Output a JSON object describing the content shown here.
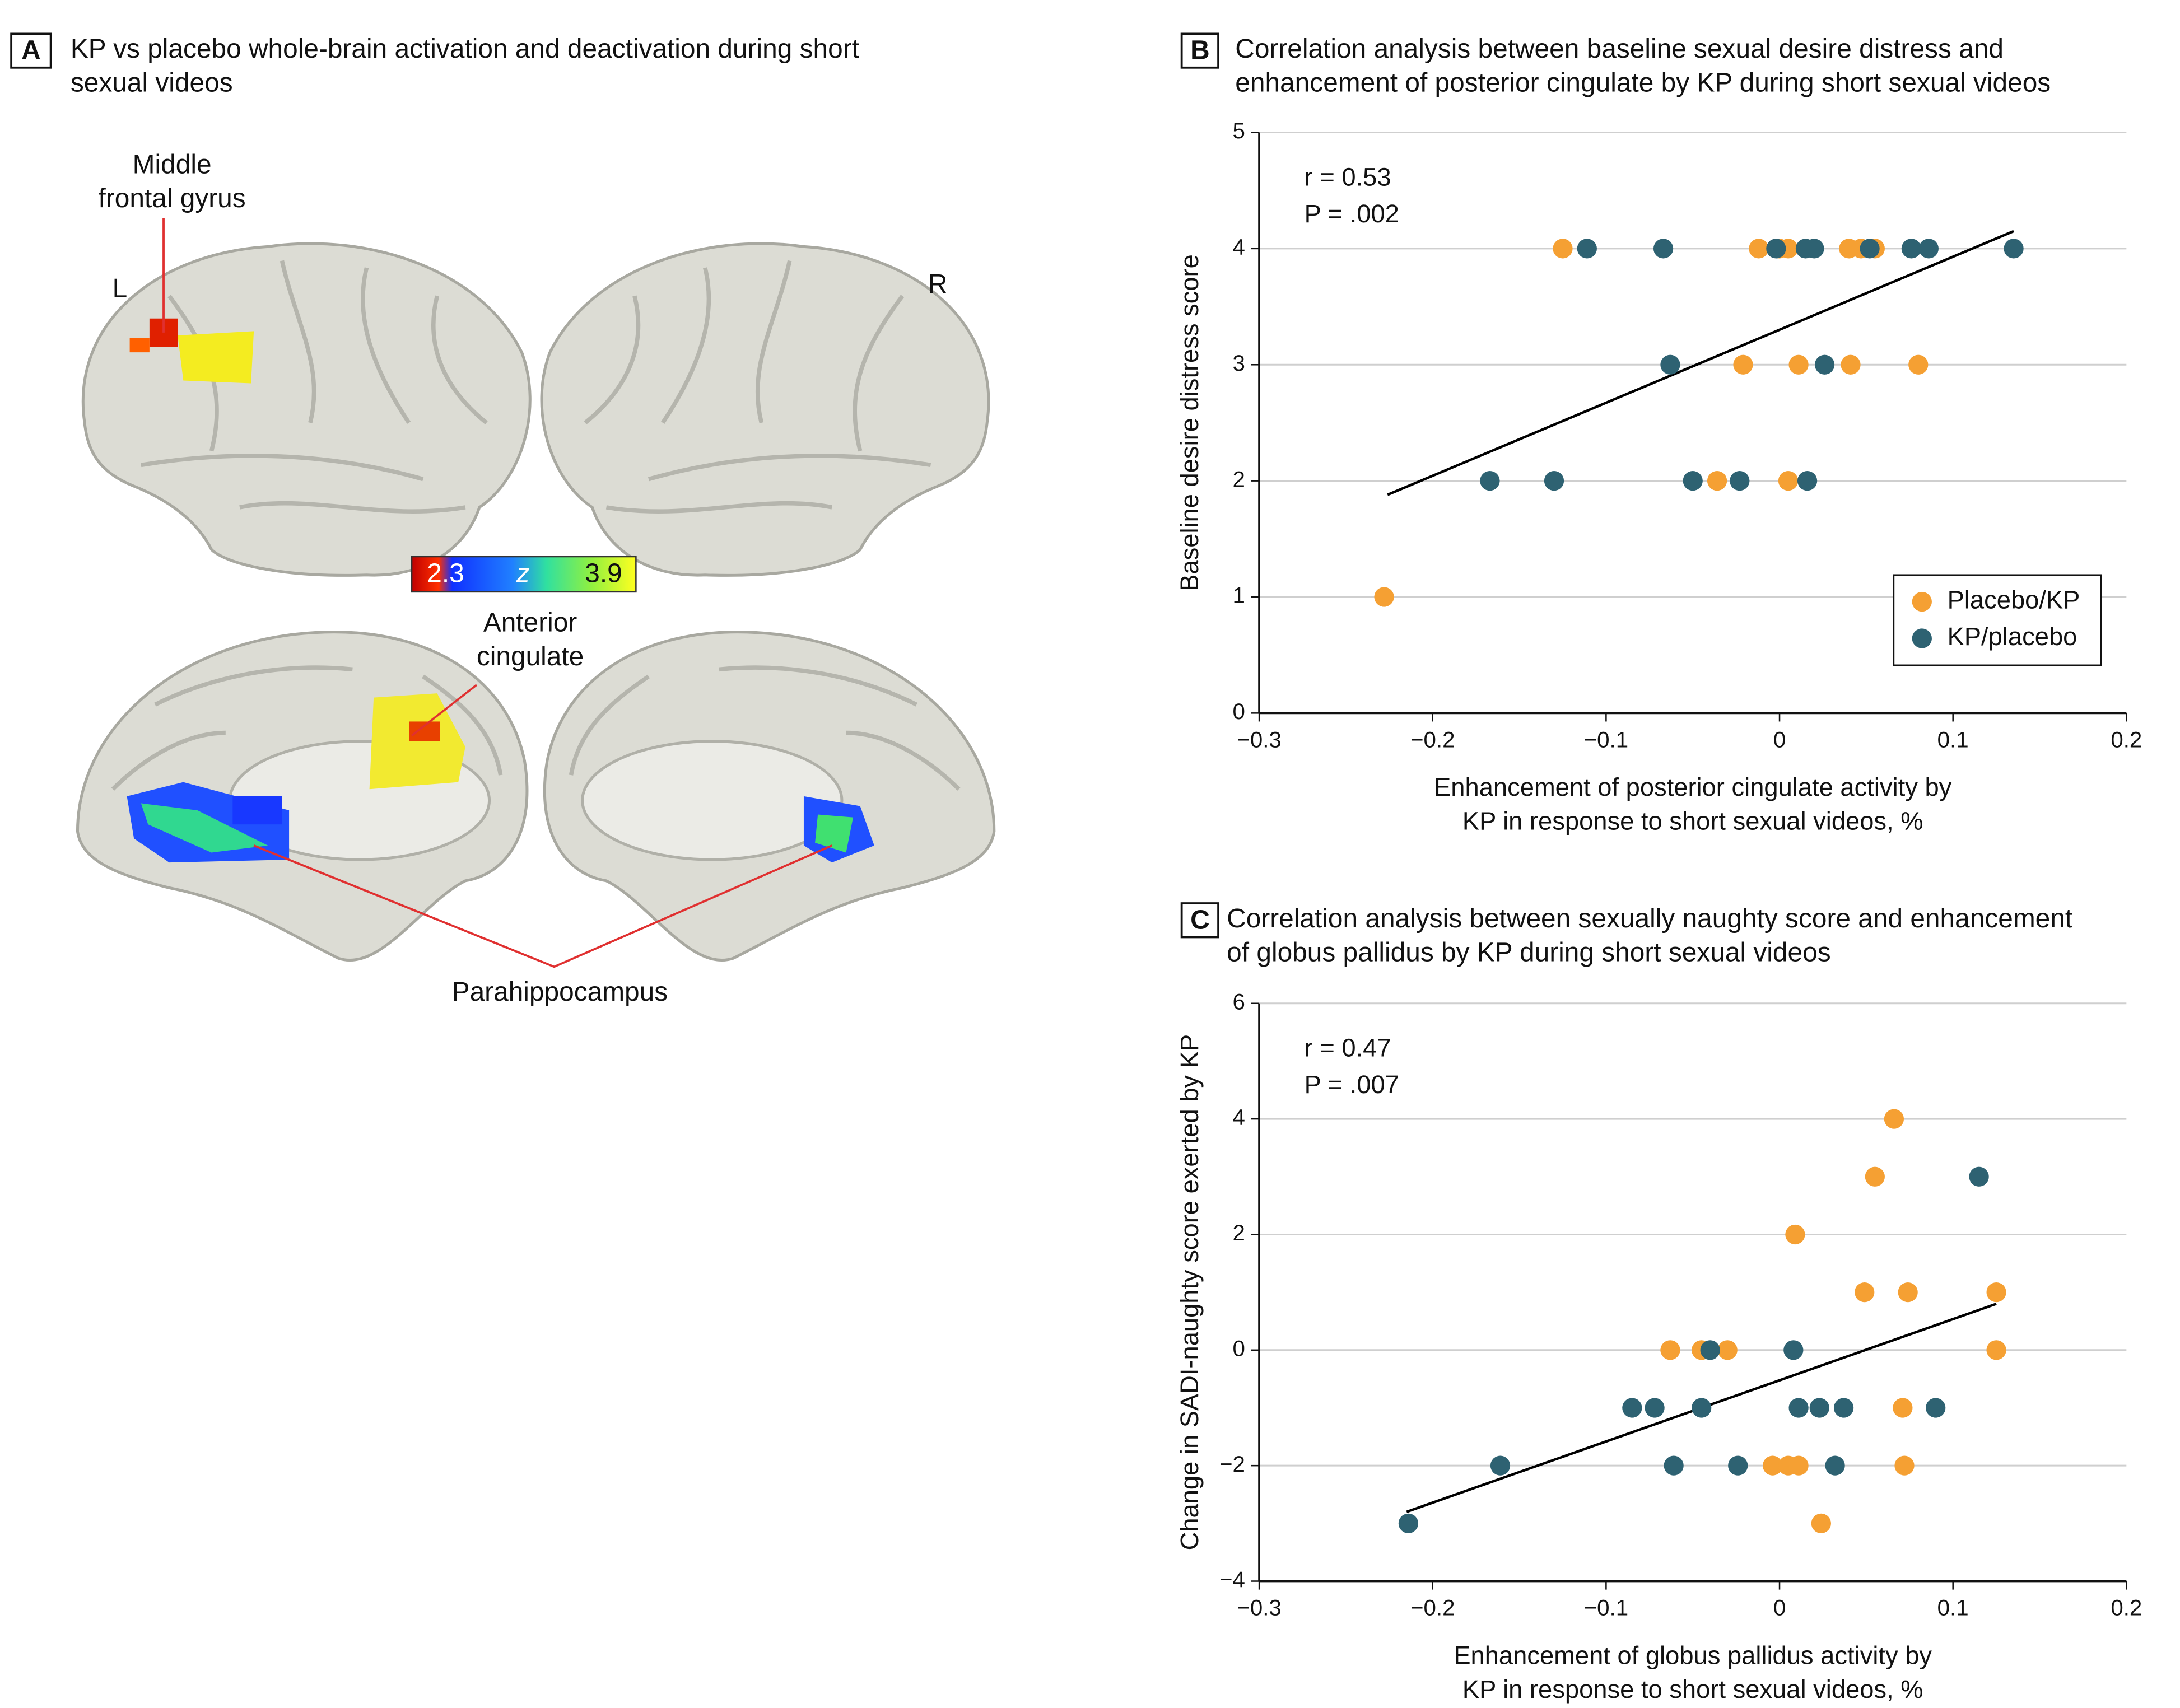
{
  "panel_a": {
    "label": "A",
    "title_lines": [
      "KP vs placebo whole-brain activation and deactivation during short",
      "sexual videos"
    ],
    "labels": {
      "middle_frontal_gyrus": [
        "Middle",
        "frontal gyrus"
      ],
      "left": "L",
      "right": "R",
      "anterior_cingulate": [
        "Anterior",
        "cingulate"
      ],
      "parahippocampus": "Parahippocampus"
    },
    "colorbar": {
      "min": 2.3,
      "label": "z",
      "max": 3.9
    }
  },
  "chart_data": [
    {
      "type": "scatter",
      "panel": "B",
      "title_lines": [
        "Correlation analysis between baseline sexual desire distress and",
        "enhancement of posterior cingulate by KP during short sexual videos"
      ],
      "x_label_lines": [
        "Enhancement of posterior cingulate activity by",
        "KP in response to short sexual videos, %"
      ],
      "y_label": "Baseline desire distress score",
      "annotations": [
        "r = 0.53",
        "P = .002"
      ],
      "xlim": [
        -0.3,
        0.2
      ],
      "xticks": [
        {
          "value": -0.3,
          "label": "−0.3"
        },
        {
          "value": -0.2,
          "label": "−0.2"
        },
        {
          "value": -0.1,
          "label": "−0.1"
        },
        0,
        0.1,
        0.2
      ],
      "ylim": [
        0,
        5
      ],
      "yticks": [
        0,
        1,
        2,
        3,
        4,
        5
      ],
      "grid": true,
      "legend": "lower right",
      "series": [
        {
          "name": "Placebo/KP",
          "color": "#f5a033",
          "x": [
            -0.125,
            -0.012,
            0.0,
            0.005,
            0.04,
            0.047,
            0.055,
            -0.021,
            0.011,
            0.041,
            0.08,
            -0.036,
            0.005,
            -0.228
          ],
          "values": [
            4,
            4,
            4,
            4,
            4,
            4,
            4,
            3,
            3,
            3,
            3,
            2,
            2,
            1
          ]
        },
        {
          "name": "KP/placebo",
          "color": "#2e6272",
          "x": [
            -0.111,
            -0.067,
            -0.002,
            0.015,
            0.02,
            0.052,
            0.076,
            0.086,
            0.135,
            -0.063,
            0.026,
            -0.167,
            -0.13,
            -0.05,
            -0.023,
            0.016
          ],
          "values": [
            4,
            4,
            4,
            4,
            4,
            4,
            4,
            4,
            4,
            3,
            3,
            2,
            2,
            2,
            2,
            2
          ]
        }
      ],
      "trend_line": {
        "color": "#000000",
        "x": [
          -0.226,
          0.135
        ],
        "y": [
          1.88,
          4.15
        ]
      }
    },
    {
      "type": "scatter",
      "panel": "C",
      "title_lines": [
        "Correlation analysis between sexually naughty score and enhancement",
        "of globus pallidus by KP during short sexual videos"
      ],
      "x_label_lines": [
        "Enhancement of globus pallidus activity by",
        "KP in response to short sexual videos, %"
      ],
      "y_label": "Change in SADI-naughty score exerted by KP",
      "annotations": [
        "r = 0.47",
        "P = .007"
      ],
      "xlim": [
        -0.3,
        0.2
      ],
      "xticks": [
        {
          "value": -0.3,
          "label": "−0.3"
        },
        {
          "value": -0.2,
          "label": "−0.2"
        },
        {
          "value": -0.1,
          "label": "−0.1"
        },
        0,
        0.1,
        0.2
      ],
      "ylim": [
        -4,
        6
      ],
      "yticks": [
        {
          "value": -4,
          "label": "−4"
        },
        {
          "value": -2,
          "label": "−2"
        },
        0,
        2,
        4,
        6
      ],
      "grid": true,
      "series": [
        {
          "name": "Placebo/KP",
          "color": "#f5a033",
          "x": [
            0.066,
            0.055,
            0.009,
            0.049,
            0.074,
            0.125,
            -0.063,
            -0.045,
            -0.03,
            0.125,
            0.071,
            -0.004,
            0.005,
            0.011,
            0.072,
            0.024
          ],
          "values": [
            4,
            3,
            2,
            1,
            1,
            1,
            0,
            0,
            0,
            0,
            -1,
            -2,
            -2,
            -2,
            -2,
            -3
          ]
        },
        {
          "name": "KP/placebo",
          "color": "#2e6272",
          "x": [
            0.115,
            -0.04,
            0.008,
            -0.085,
            -0.072,
            -0.045,
            0.011,
            0.023,
            0.037,
            0.09,
            -0.161,
            -0.061,
            -0.024,
            0.032,
            -0.214
          ],
          "values": [
            3,
            0,
            0,
            -1,
            -1,
            -1,
            -1,
            -1,
            -1,
            -1,
            -2,
            -2,
            -2,
            -2,
            -3
          ]
        }
      ],
      "trend_line": {
        "color": "#000000",
        "x": [
          -0.215,
          0.125
        ],
        "y": [
          -2.8,
          0.8
        ]
      }
    }
  ]
}
